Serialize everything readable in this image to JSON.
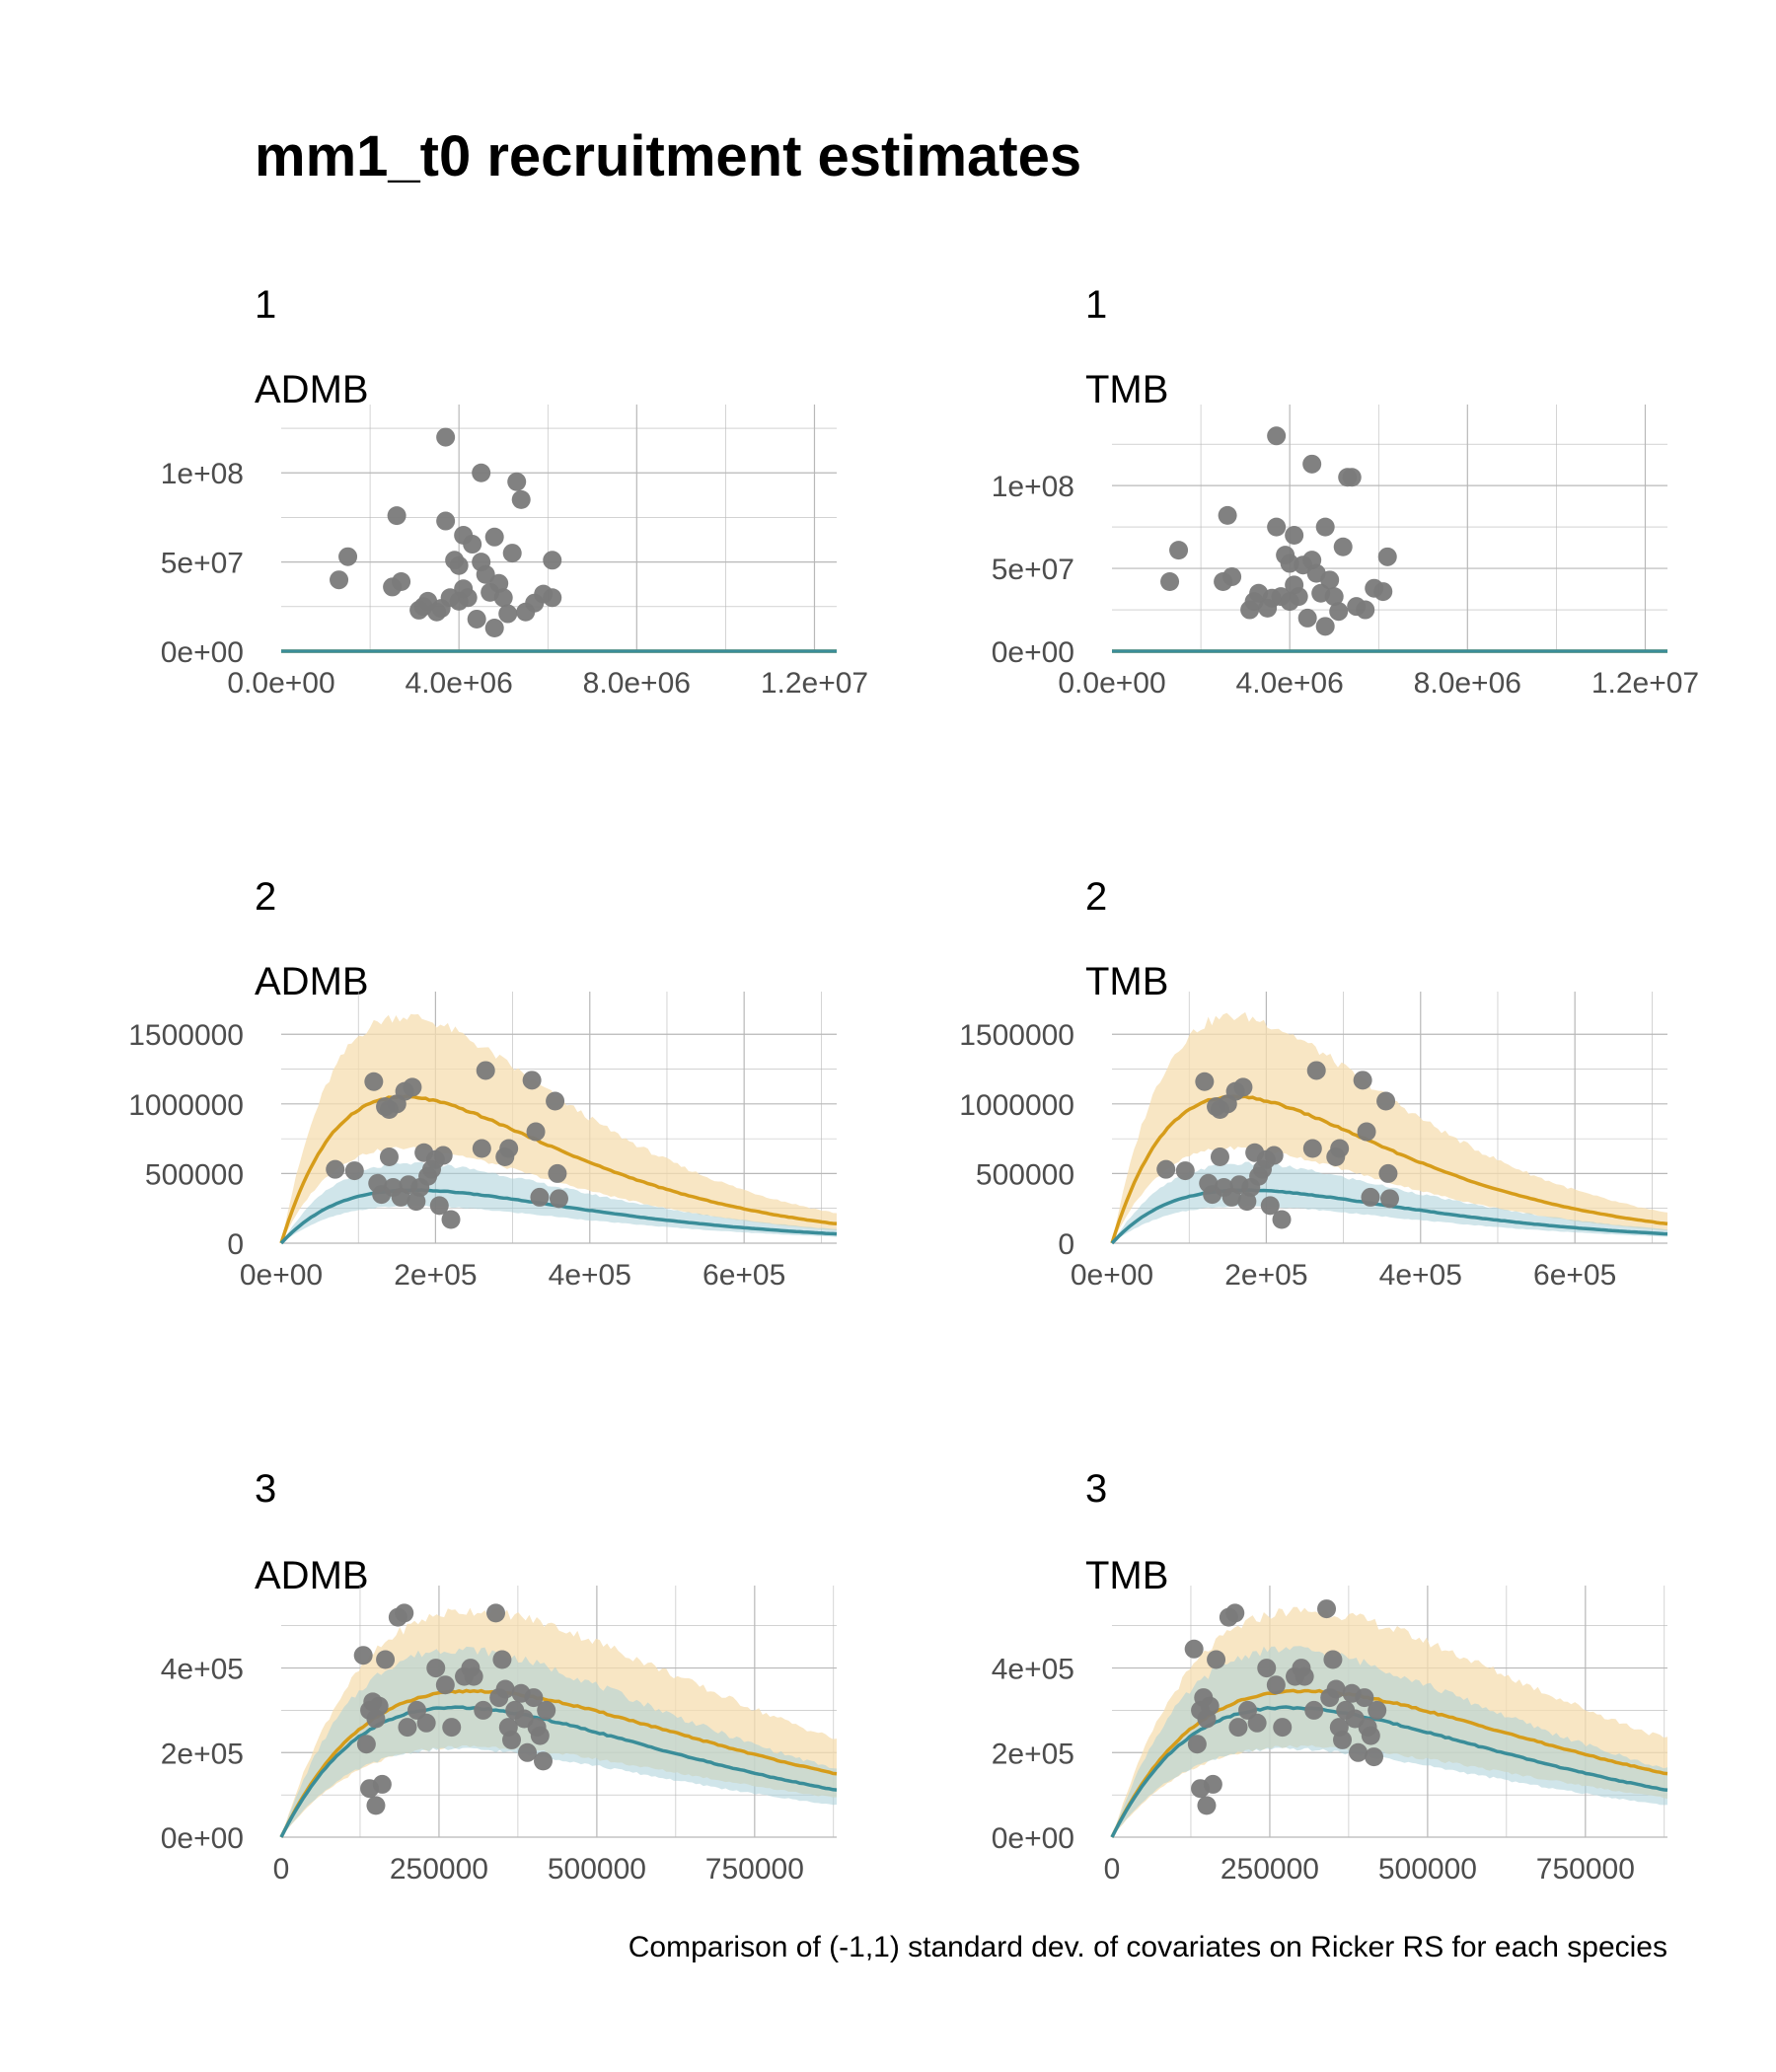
{
  "title": "mm1_t0  recruitment estimates",
  "caption": "Comparison of (-1,1) standard dev. of covariates on Ricker RS for each species",
  "colors": {
    "orange_line": "#D69C1A",
    "orange_band": "#F5DEB0",
    "teal_line": "#3A8D99",
    "teal_band": "#A9CFD8",
    "points": "#7A7A7A",
    "grid": "#B8B8B8"
  },
  "chart_data": [
    {
      "type": "line",
      "species_label": "1",
      "model_label": "ADMB",
      "xlim": [
        0,
        12500000
      ],
      "ylim": [
        0,
        130000000
      ],
      "xticks": [
        0,
        4000000,
        8000000,
        12000000
      ],
      "xtick_labels": [
        "0.0e+00",
        "4.0e+06",
        "8.0e+06",
        "1.2e+07"
      ],
      "yticks": [
        0,
        50000000,
        100000000
      ],
      "ytick_labels": [
        "0e+00",
        "5e+07",
        "1e+08"
      ],
      "grid": true,
      "series": [
        {
          "alpha": 0.0001,
          "beta": 5.8e-08,
          "band_lo": 0.6,
          "band_hi": 1.6,
          "x_max": 12500000,
          "color": "#D69C1A",
          "band_color": "#F5DEB0"
        },
        {
          "alpha": 3.3e-05,
          "beta": 3.8e-08,
          "band_lo": 0.6,
          "band_hi": 1.5,
          "x_max": 12500000,
          "color": "#3A8D99",
          "band_color": "#A9CFD8"
        }
      ],
      "points": [
        [
          1300000,
          40000000
        ],
        [
          1500000,
          53000000
        ],
        [
          2600000,
          76000000
        ],
        [
          2500000,
          36000000
        ],
        [
          2700000,
          39000000
        ],
        [
          3200000,
          25000000
        ],
        [
          3300000,
          28000000
        ],
        [
          3500000,
          22000000
        ],
        [
          3600000,
          24000000
        ],
        [
          3700000,
          73000000
        ],
        [
          3700000,
          120000000
        ],
        [
          3800000,
          30000000
        ],
        [
          3900000,
          51000000
        ],
        [
          4000000,
          48000000
        ],
        [
          4100000,
          65000000
        ],
        [
          4100000,
          35000000
        ],
        [
          4200000,
          30000000
        ],
        [
          4300000,
          60000000
        ],
        [
          4400000,
          18000000
        ],
        [
          4500000,
          100000000
        ],
        [
          4500000,
          50000000
        ],
        [
          4600000,
          43000000
        ],
        [
          4700000,
          33000000
        ],
        [
          4800000,
          13000000
        ],
        [
          4800000,
          64000000
        ],
        [
          4900000,
          38000000
        ],
        [
          5000000,
          30000000
        ],
        [
          5100000,
          21000000
        ],
        [
          5200000,
          55000000
        ],
        [
          5300000,
          95000000
        ],
        [
          5400000,
          85000000
        ],
        [
          5500000,
          22000000
        ],
        [
          5700000,
          27000000
        ],
        [
          5900000,
          32000000
        ],
        [
          6100000,
          30000000
        ],
        [
          6100000,
          51000000
        ],
        [
          4000000,
          28000000
        ],
        [
          3100000,
          23000000
        ]
      ]
    },
    {
      "type": "line",
      "species_label": "1",
      "model_label": "TMB",
      "xlim": [
        0,
        12500000
      ],
      "ylim": [
        0,
        140000000
      ],
      "xticks": [
        0,
        4000000,
        8000000,
        12000000
      ],
      "xtick_labels": [
        "0.0e+00",
        "4.0e+06",
        "8.0e+06",
        "1.2e+07"
      ],
      "yticks": [
        0,
        50000000,
        100000000
      ],
      "ytick_labels": [
        "0e+00",
        "5e+07",
        "1e+08"
      ],
      "grid": true,
      "series": [
        {
          "alpha": 0.0001,
          "beta": 5.8e-08,
          "band_lo": 0.6,
          "band_hi": 1.6,
          "x_max": 12500000,
          "color": "#D69C1A",
          "band_color": "#F5DEB0"
        },
        {
          "alpha": 3.3e-05,
          "beta": 3.8e-08,
          "band_lo": 0.6,
          "band_hi": 1.5,
          "x_max": 12500000,
          "color": "#3A8D99",
          "band_color": "#A9CFD8"
        }
      ],
      "points": [
        [
          1300000,
          42000000
        ],
        [
          1500000,
          61000000
        ],
        [
          2600000,
          82000000
        ],
        [
          2500000,
          42000000
        ],
        [
          2700000,
          45000000
        ],
        [
          3200000,
          30000000
        ],
        [
          3300000,
          35000000
        ],
        [
          3500000,
          26000000
        ],
        [
          3600000,
          32000000
        ],
        [
          3700000,
          75000000
        ],
        [
          3700000,
          130000000
        ],
        [
          3800000,
          33000000
        ],
        [
          3900000,
          58000000
        ],
        [
          4000000,
          53000000
        ],
        [
          4100000,
          70000000
        ],
        [
          4100000,
          40000000
        ],
        [
          4200000,
          33000000
        ],
        [
          4300000,
          52000000
        ],
        [
          4400000,
          20000000
        ],
        [
          4500000,
          113000000
        ],
        [
          4500000,
          55000000
        ],
        [
          4600000,
          47000000
        ],
        [
          4700000,
          35000000
        ],
        [
          4800000,
          15000000
        ],
        [
          4800000,
          75000000
        ],
        [
          4900000,
          43000000
        ],
        [
          5000000,
          33000000
        ],
        [
          5100000,
          24000000
        ],
        [
          5200000,
          63000000
        ],
        [
          5300000,
          105000000
        ],
        [
          5400000,
          105000000
        ],
        [
          5500000,
          27000000
        ],
        [
          5700000,
          25000000
        ],
        [
          5900000,
          38000000
        ],
        [
          6100000,
          36000000
        ],
        [
          6200000,
          57000000
        ],
        [
          4000000,
          30000000
        ],
        [
          3100000,
          25000000
        ]
      ]
    },
    {
      "type": "line",
      "species_label": "2",
      "model_label": "ADMB",
      "xlim": [
        0,
        720000
      ],
      "ylim": [
        0,
        1700000
      ],
      "xticks": [
        0,
        200000,
        400000,
        600000
      ],
      "xtick_labels": [
        "0e+00",
        "2e+05",
        "4e+05",
        "6e+05"
      ],
      "yticks": [
        0,
        500000,
        1000000,
        1500000
      ],
      "ytick_labels": [
        "0",
        "500000",
        "1000000",
        "1500000"
      ],
      "grid": true,
      "series": [
        {
          "alpha": 18.0,
          "beta": 6.3e-06,
          "band_lo": 0.65,
          "band_hi": 1.55,
          "x_max": 720000,
          "color": "#D69C1A",
          "band_color": "#F5DEB0"
        },
        {
          "alpha": 6.0,
          "beta": 5.8e-06,
          "band_lo": 0.7,
          "band_hi": 1.5,
          "x_max": 720000,
          "color": "#3A8D99",
          "band_color": "#A9CFD8"
        }
      ],
      "points": [
        [
          70000,
          530000
        ],
        [
          95000,
          520000
        ],
        [
          120000,
          1160000
        ],
        [
          125000,
          430000
        ],
        [
          130000,
          350000
        ],
        [
          135000,
          980000
        ],
        [
          140000,
          960000
        ],
        [
          140000,
          620000
        ],
        [
          145000,
          400000
        ],
        [
          150000,
          1000000
        ],
        [
          155000,
          330000
        ],
        [
          160000,
          1090000
        ],
        [
          165000,
          420000
        ],
        [
          170000,
          1120000
        ],
        [
          175000,
          300000
        ],
        [
          180000,
          400000
        ],
        [
          185000,
          650000
        ],
        [
          190000,
          480000
        ],
        [
          195000,
          530000
        ],
        [
          200000,
          600000
        ],
        [
          205000,
          270000
        ],
        [
          210000,
          630000
        ],
        [
          220000,
          170000
        ],
        [
          260000,
          680000
        ],
        [
          265000,
          1240000
        ],
        [
          290000,
          620000
        ],
        [
          295000,
          680000
        ],
        [
          325000,
          1170000
        ],
        [
          330000,
          800000
        ],
        [
          335000,
          330000
        ],
        [
          355000,
          1020000
        ],
        [
          358000,
          500000
        ],
        [
          360000,
          320000
        ]
      ]
    },
    {
      "type": "line",
      "species_label": "2",
      "model_label": "TMB",
      "xlim": [
        0,
        720000
      ],
      "ylim": [
        0,
        1700000
      ],
      "xticks": [
        0,
        200000,
        400000,
        600000
      ],
      "xtick_labels": [
        "0e+00",
        "2e+05",
        "4e+05",
        "6e+05"
      ],
      "yticks": [
        0,
        500000,
        1000000,
        1500000
      ],
      "ytick_labels": [
        "0",
        "500000",
        "1000000",
        "1500000"
      ],
      "grid": true,
      "series": [
        {
          "alpha": 18.0,
          "beta": 6.3e-06,
          "band_lo": 0.65,
          "band_hi": 1.55,
          "x_max": 720000,
          "color": "#D69C1A",
          "band_color": "#F5DEB0"
        },
        {
          "alpha": 6.0,
          "beta": 5.8e-06,
          "band_lo": 0.7,
          "band_hi": 1.5,
          "x_max": 720000,
          "color": "#3A8D99",
          "band_color": "#A9CFD8"
        }
      ],
      "points": [
        [
          70000,
          530000
        ],
        [
          95000,
          520000
        ],
        [
          120000,
          1160000
        ],
        [
          125000,
          430000
        ],
        [
          130000,
          350000
        ],
        [
          135000,
          980000
        ],
        [
          140000,
          960000
        ],
        [
          140000,
          620000
        ],
        [
          145000,
          400000
        ],
        [
          150000,
          1000000
        ],
        [
          155000,
          330000
        ],
        [
          160000,
          1090000
        ],
        [
          165000,
          420000
        ],
        [
          170000,
          1120000
        ],
        [
          175000,
          300000
        ],
        [
          180000,
          400000
        ],
        [
          185000,
          650000
        ],
        [
          190000,
          480000
        ],
        [
          195000,
          530000
        ],
        [
          200000,
          600000
        ],
        [
          205000,
          270000
        ],
        [
          210000,
          630000
        ],
        [
          220000,
          170000
        ],
        [
          260000,
          680000
        ],
        [
          265000,
          1240000
        ],
        [
          290000,
          620000
        ],
        [
          295000,
          680000
        ],
        [
          325000,
          1170000
        ],
        [
          330000,
          800000
        ],
        [
          335000,
          330000
        ],
        [
          355000,
          1020000
        ],
        [
          358000,
          500000
        ],
        [
          360000,
          320000
        ]
      ]
    },
    {
      "type": "line",
      "species_label": "3",
      "model_label": "ADMB",
      "xlim": [
        0,
        880000
      ],
      "ylim": [
        0,
        560000
      ],
      "xticks": [
        0,
        250000,
        500000,
        750000
      ],
      "xtick_labels": [
        "0",
        "250000",
        "500000",
        "750000"
      ],
      "yticks": [
        0,
        200000,
        400000
      ],
      "ytick_labels": [
        "0e+00",
        "2e+05",
        "4e+05"
      ],
      "grid": true,
      "series": [
        {
          "alpha": 3.1,
          "beta": 3.3e-06,
          "band_lo": 0.62,
          "band_hi": 1.55,
          "x_max": 880000,
          "color": "#D69C1A",
          "band_color": "#F5DEB0"
        },
        {
          "alpha": 3.0,
          "beta": 3.6e-06,
          "band_lo": 0.68,
          "band_hi": 1.45,
          "x_max": 880000,
          "color": "#3A8D99",
          "band_color": "#A9CFD8"
        }
      ],
      "points": [
        [
          130000,
          430000
        ],
        [
          135000,
          220000
        ],
        [
          140000,
          300000
        ],
        [
          140000,
          115000
        ],
        [
          145000,
          320000
        ],
        [
          150000,
          75000
        ],
        [
          150000,
          280000
        ],
        [
          155000,
          310000
        ],
        [
          160000,
          125000
        ],
        [
          165000,
          420000
        ],
        [
          185000,
          520000
        ],
        [
          195000,
          530000
        ],
        [
          200000,
          260000
        ],
        [
          215000,
          300000
        ],
        [
          230000,
          270000
        ],
        [
          245000,
          400000
        ],
        [
          260000,
          360000
        ],
        [
          270000,
          260000
        ],
        [
          290000,
          380000
        ],
        [
          300000,
          400000
        ],
        [
          305000,
          380000
        ],
        [
          320000,
          300000
        ],
        [
          340000,
          530000
        ],
        [
          345000,
          330000
        ],
        [
          350000,
          420000
        ],
        [
          355000,
          350000
        ],
        [
          360000,
          260000
        ],
        [
          365000,
          230000
        ],
        [
          370000,
          300000
        ],
        [
          380000,
          340000
        ],
        [
          385000,
          280000
        ],
        [
          390000,
          200000
        ],
        [
          400000,
          330000
        ],
        [
          405000,
          260000
        ],
        [
          410000,
          240000
        ],
        [
          415000,
          180000
        ],
        [
          420000,
          300000
        ]
      ]
    },
    {
      "type": "line",
      "species_label": "3",
      "model_label": "TMB",
      "xlim": [
        0,
        880000
      ],
      "ylim": [
        0,
        560000
      ],
      "xticks": [
        0,
        250000,
        500000,
        750000
      ],
      "xtick_labels": [
        "0",
        "250000",
        "500000",
        "750000"
      ],
      "yticks": [
        0,
        200000,
        400000
      ],
      "ytick_labels": [
        "0e+00",
        "2e+05",
        "4e+05"
      ],
      "grid": true,
      "series": [
        {
          "alpha": 3.1,
          "beta": 3.3e-06,
          "band_lo": 0.62,
          "band_hi": 1.55,
          "x_max": 880000,
          "color": "#D69C1A",
          "band_color": "#F5DEB0"
        },
        {
          "alpha": 3.0,
          "beta": 3.6e-06,
          "band_lo": 0.68,
          "band_hi": 1.45,
          "x_max": 880000,
          "color": "#3A8D99",
          "band_color": "#A9CFD8"
        }
      ],
      "points": [
        [
          130000,
          445000
        ],
        [
          135000,
          220000
        ],
        [
          140000,
          300000
        ],
        [
          140000,
          115000
        ],
        [
          145000,
          330000
        ],
        [
          150000,
          75000
        ],
        [
          150000,
          280000
        ],
        [
          155000,
          310000
        ],
        [
          160000,
          125000
        ],
        [
          165000,
          420000
        ],
        [
          185000,
          520000
        ],
        [
          195000,
          530000
        ],
        [
          200000,
          260000
        ],
        [
          215000,
          300000
        ],
        [
          230000,
          270000
        ],
        [
          245000,
          400000
        ],
        [
          260000,
          360000
        ],
        [
          270000,
          260000
        ],
        [
          290000,
          380000
        ],
        [
          300000,
          400000
        ],
        [
          305000,
          380000
        ],
        [
          320000,
          300000
        ],
        [
          340000,
          540000
        ],
        [
          345000,
          330000
        ],
        [
          350000,
          420000
        ],
        [
          355000,
          350000
        ],
        [
          360000,
          260000
        ],
        [
          365000,
          230000
        ],
        [
          370000,
          300000
        ],
        [
          380000,
          340000
        ],
        [
          385000,
          280000
        ],
        [
          390000,
          200000
        ],
        [
          400000,
          330000
        ],
        [
          405000,
          260000
        ],
        [
          410000,
          240000
        ],
        [
          415000,
          190000
        ],
        [
          420000,
          300000
        ]
      ]
    }
  ]
}
